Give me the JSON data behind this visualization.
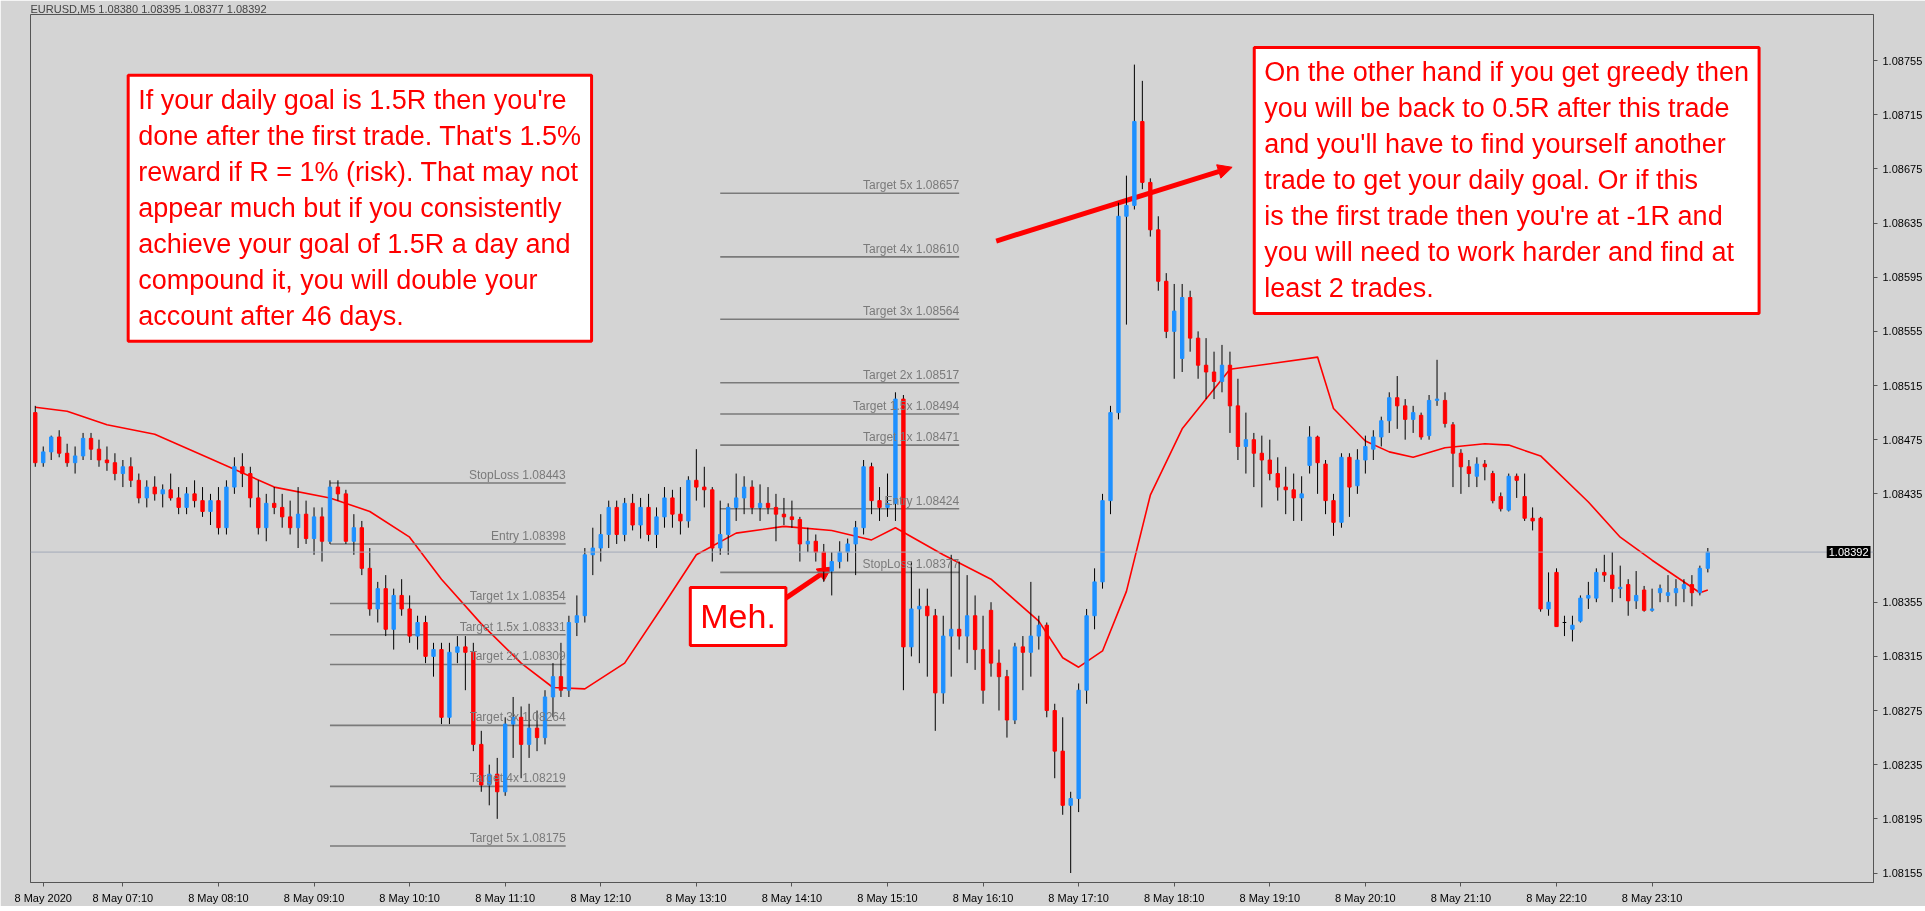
{
  "chart_data": {
    "type": "candlestick",
    "title": "EURUSD,M5  1.08380 1.08395 1.08377 1.08392",
    "x": [
      "2020-05-08T06:15",
      "2020-05-08T06:20",
      "2020-05-08T06:25",
      "2020-05-08T06:30",
      "2020-05-08T06:35",
      "2020-05-08T06:40",
      "2020-05-08T06:45",
      "2020-05-08T06:50",
      "2020-05-08T06:55",
      "2020-05-08T07:00",
      "2020-05-08T07:05",
      "2020-05-08T07:10",
      "2020-05-08T07:15",
      "2020-05-08T07:20",
      "2020-05-08T07:25",
      "2020-05-08T07:30",
      "2020-05-08T07:35",
      "2020-05-08T07:40",
      "2020-05-08T07:45",
      "2020-05-08T07:50",
      "2020-05-08T07:55",
      "2020-05-08T08:00",
      "2020-05-08T08:05",
      "2020-05-08T08:10",
      "2020-05-08T08:15",
      "2020-05-08T08:20",
      "2020-05-08T08:25",
      "2020-05-08T08:30",
      "2020-05-08T08:35",
      "2020-05-08T08:40",
      "2020-05-08T08:45",
      "2020-05-08T08:50",
      "2020-05-08T08:55",
      "2020-05-08T09:00",
      "2020-05-08T09:05",
      "2020-05-08T09:10",
      "2020-05-08T09:15",
      "2020-05-08T09:20",
      "2020-05-08T09:25",
      "2020-05-08T09:30",
      "2020-05-08T09:35",
      "2020-05-08T09:40",
      "2020-05-08T09:45",
      "2020-05-08T09:50",
      "2020-05-08T09:55",
      "2020-05-08T10:00",
      "2020-05-08T10:05",
      "2020-05-08T10:10",
      "2020-05-08T10:15",
      "2020-05-08T10:20",
      "2020-05-08T10:25",
      "2020-05-08T10:30",
      "2020-05-08T10:35",
      "2020-05-08T10:40",
      "2020-05-08T10:45",
      "2020-05-08T10:50",
      "2020-05-08T10:55",
      "2020-05-08T11:00",
      "2020-05-08T11:05",
      "2020-05-08T11:10",
      "2020-05-08T11:15",
      "2020-05-08T11:20",
      "2020-05-08T11:25",
      "2020-05-08T11:30",
      "2020-05-08T11:35",
      "2020-05-08T11:40",
      "2020-05-08T11:45",
      "2020-05-08T11:50",
      "2020-05-08T11:55",
      "2020-05-08T12:00",
      "2020-05-08T12:05",
      "2020-05-08T12:10",
      "2020-05-08T12:15",
      "2020-05-08T12:20",
      "2020-05-08T12:25",
      "2020-05-08T12:30",
      "2020-05-08T12:35",
      "2020-05-08T12:40",
      "2020-05-08T12:45",
      "2020-05-08T12:50",
      "2020-05-08T12:55",
      "2020-05-08T13:00",
      "2020-05-08T13:05",
      "2020-05-08T13:10",
      "2020-05-08T13:15",
      "2020-05-08T13:20",
      "2020-05-08T13:25",
      "2020-05-08T13:30",
      "2020-05-08T13:35",
      "2020-05-08T13:40",
      "2020-05-08T13:45",
      "2020-05-08T13:50",
      "2020-05-08T13:55",
      "2020-05-08T14:00",
      "2020-05-08T14:05",
      "2020-05-08T14:10",
      "2020-05-08T14:15",
      "2020-05-08T14:20",
      "2020-05-08T14:25",
      "2020-05-08T14:30",
      "2020-05-08T14:35",
      "2020-05-08T14:40",
      "2020-05-08T14:45",
      "2020-05-08T14:50",
      "2020-05-08T14:55",
      "2020-05-08T15:00",
      "2020-05-08T15:05",
      "2020-05-08T15:10",
      "2020-05-08T15:15",
      "2020-05-08T15:20",
      "2020-05-08T15:25",
      "2020-05-08T15:30",
      "2020-05-08T15:35",
      "2020-05-08T15:40",
      "2020-05-08T15:45",
      "2020-05-08T15:50",
      "2020-05-08T15:55",
      "2020-05-08T16:00",
      "2020-05-08T16:05",
      "2020-05-08T16:10",
      "2020-05-08T16:15",
      "2020-05-08T16:20",
      "2020-05-08T16:25",
      "2020-05-08T16:30",
      "2020-05-08T16:35",
      "2020-05-08T16:40",
      "2020-05-08T16:45",
      "2020-05-08T16:50",
      "2020-05-08T16:55",
      "2020-05-08T17:00",
      "2020-05-08T17:05",
      "2020-05-08T17:10",
      "2020-05-08T17:15",
      "2020-05-08T17:20",
      "2020-05-08T17:25",
      "2020-05-08T17:30",
      "2020-05-08T17:35",
      "2020-05-08T17:40",
      "2020-05-08T17:45",
      "2020-05-08T17:50",
      "2020-05-08T17:55",
      "2020-05-08T18:00",
      "2020-05-08T18:05",
      "2020-05-08T18:10",
      "2020-05-08T18:15",
      "2020-05-08T18:20",
      "2020-05-08T18:25",
      "2020-05-08T18:30",
      "2020-05-08T18:35",
      "2020-05-08T18:40",
      "2020-05-08T18:45",
      "2020-05-08T18:50",
      "2020-05-08T18:55",
      "2020-05-08T19:00",
      "2020-05-08T19:05",
      "2020-05-08T19:10",
      "2020-05-08T19:15",
      "2020-05-08T19:20",
      "2020-05-08T19:25",
      "2020-05-08T19:30",
      "2020-05-08T19:35",
      "2020-05-08T19:40",
      "2020-05-08T19:45",
      "2020-05-08T19:50",
      "2020-05-08T19:55",
      "2020-05-08T20:00",
      "2020-05-08T20:05",
      "2020-05-08T20:10",
      "2020-05-08T20:15",
      "2020-05-08T20:20",
      "2020-05-08T20:25",
      "2020-05-08T20:30",
      "2020-05-08T20:35",
      "2020-05-08T20:40",
      "2020-05-08T20:45",
      "2020-05-08T20:50",
      "2020-05-08T20:55",
      "2020-05-08T21:00",
      "2020-05-08T21:05",
      "2020-05-08T21:10",
      "2020-05-08T21:15",
      "2020-05-08T21:20",
      "2020-05-08T21:25",
      "2020-05-08T21:30",
      "2020-05-08T21:35",
      "2020-05-08T21:40",
      "2020-05-08T21:45",
      "2020-05-08T21:50",
      "2020-05-08T21:55",
      "2020-05-08T22:00",
      "2020-05-08T22:05",
      "2020-05-08T22:10",
      "2020-05-08T22:15",
      "2020-05-08T22:20",
      "2020-05-08T22:25",
      "2020-05-08T22:30",
      "2020-05-08T22:35",
      "2020-05-08T22:40",
      "2020-05-08T22:45",
      "2020-05-08T22:50",
      "2020-05-08T22:55",
      "2020-05-08T23:00",
      "2020-05-08T23:05",
      "2020-05-08T23:10",
      "2020-05-08T23:15",
      "2020-05-08T23:20",
      "2020-05-08T23:25",
      "2020-05-08T23:30",
      "2020-05-08T23:35",
      "2020-05-08T23:40",
      "2020-05-08T23:45"
    ],
    "ohlc": [
      [
        1.08495,
        1.085,
        1.08455,
        1.08458
      ],
      [
        1.08458,
        1.0847,
        1.08455,
        1.08466
      ],
      [
        1.08466,
        1.08478,
        1.0846,
        1.08477
      ],
      [
        1.08477,
        1.08482,
        1.08462,
        1.08465
      ],
      [
        1.08465,
        1.08472,
        1.08455,
        1.08458
      ],
      [
        1.08458,
        1.0847,
        1.0845,
        1.08463
      ],
      [
        1.08463,
        1.0848,
        1.0846,
        1.08476
      ],
      [
        1.08476,
        1.0848,
        1.0846,
        1.08468
      ],
      [
        1.08468,
        1.08475,
        1.08455,
        1.0846
      ],
      [
        1.0846,
        1.0847,
        1.08452,
        1.08458
      ],
      [
        1.08458,
        1.08465,
        1.08445,
        1.0845
      ],
      [
        1.0845,
        1.0846,
        1.0844,
        1.08455
      ],
      [
        1.08455,
        1.08462,
        1.0844,
        1.08445
      ],
      [
        1.08445,
        1.0845,
        1.08428,
        1.08432
      ],
      [
        1.08432,
        1.08445,
        1.08425,
        1.0844
      ],
      [
        1.0844,
        1.08448,
        1.0843,
        1.08435
      ],
      [
        1.08435,
        1.08442,
        1.08425,
        1.08438
      ],
      [
        1.08438,
        1.0845,
        1.0843,
        1.08432
      ],
      [
        1.08432,
        1.0844,
        1.0842,
        1.08425
      ],
      [
        1.08425,
        1.0844,
        1.0842,
        1.08435
      ],
      [
        1.08435,
        1.08445,
        1.08425,
        1.0843
      ],
      [
        1.0843,
        1.0844,
        1.08418,
        1.08422
      ],
      [
        1.08422,
        1.08435,
        1.08412,
        1.0843
      ],
      [
        1.0843,
        1.0844,
        1.08405,
        1.0841
      ],
      [
        1.0841,
        1.08445,
        1.08405,
        1.0844
      ],
      [
        1.0844,
        1.08462,
        1.08435,
        1.08455
      ],
      [
        1.08455,
        1.08465,
        1.0844,
        1.0845
      ],
      [
        1.0845,
        1.08455,
        1.08425,
        1.08432
      ],
      [
        1.08432,
        1.08445,
        1.08405,
        1.0841
      ],
      [
        1.0841,
        1.08435,
        1.084,
        1.08428
      ],
      [
        1.08428,
        1.0844,
        1.0842,
        1.08425
      ],
      [
        1.08425,
        1.08435,
        1.0841,
        1.08418
      ],
      [
        1.08418,
        1.0843,
        1.08405,
        1.0841
      ],
      [
        1.0841,
        1.0844,
        1.08395,
        1.0842
      ],
      [
        1.0842,
        1.0843,
        1.08398,
        1.08402
      ],
      [
        1.08402,
        1.08425,
        1.0839,
        1.08418
      ],
      [
        1.08418,
        1.08425,
        1.08385,
        1.084
      ],
      [
        1.084,
        1.08445,
        1.08398,
        1.0844
      ],
      [
        1.0844,
        1.08445,
        1.0843,
        1.08435
      ],
      [
        1.08435,
        1.08438,
        1.08398,
        1.084
      ],
      [
        1.084,
        1.0842,
        1.0839,
        1.0841
      ],
      [
        1.0841,
        1.08415,
        1.08375,
        1.0838
      ],
      [
        1.0838,
        1.08395,
        1.08345,
        1.0835
      ],
      [
        1.0835,
        1.0837,
        1.0834,
        1.08365
      ],
      [
        1.08365,
        1.08375,
        1.0833,
        1.08335
      ],
      [
        1.08335,
        1.08365,
        1.0832,
        1.0836
      ],
      [
        1.0836,
        1.08372,
        1.08345,
        1.0835
      ],
      [
        1.0835,
        1.0836,
        1.08325,
        1.0833
      ],
      [
        1.0833,
        1.08345,
        1.0832,
        1.0834
      ],
      [
        1.0834,
        1.08345,
        1.0831,
        1.08315
      ],
      [
        1.08315,
        1.08325,
        1.083,
        1.0832
      ],
      [
        1.0832,
        1.08325,
        1.08265,
        1.0827
      ],
      [
        1.0827,
        1.08325,
        1.08265,
        1.08318
      ],
      [
        1.08318,
        1.0833,
        1.0831,
        1.08322
      ],
      [
        1.08322,
        1.0833,
        1.0829,
        1.08318
      ],
      [
        1.08318,
        1.08325,
        1.08245,
        1.0825
      ],
      [
        1.0825,
        1.0826,
        1.08215,
        1.0822
      ],
      [
        1.0822,
        1.08235,
        1.08205,
        1.08228
      ],
      [
        1.08228,
        1.0824,
        1.08195,
        1.08215
      ],
      [
        1.08215,
        1.0827,
        1.08212,
        1.08265
      ],
      [
        1.08265,
        1.08285,
        1.0824,
        1.0827
      ],
      [
        1.0827,
        1.08278,
        1.08225,
        1.0825
      ],
      [
        1.0825,
        1.0828,
        1.0824,
        1.08262
      ],
      [
        1.08262,
        1.08275,
        1.08245,
        1.08255
      ],
      [
        1.08255,
        1.0829,
        1.0825,
        1.08285
      ],
      [
        1.08285,
        1.0831,
        1.0827,
        1.083
      ],
      [
        1.083,
        1.08325,
        1.08285,
        1.0829
      ],
      [
        1.0829,
        1.08345,
        1.08285,
        1.0834
      ],
      [
        1.0834,
        1.0836,
        1.0833,
        1.08345
      ],
      [
        1.08345,
        1.08395,
        1.0834,
        1.0839
      ],
      [
        1.0839,
        1.0841,
        1.08375,
        1.08395
      ],
      [
        1.08395,
        1.0842,
        1.08385,
        1.08405
      ],
      [
        1.08405,
        1.0843,
        1.08395,
        1.08425
      ],
      [
        1.08425,
        1.0843,
        1.08398,
        1.08405
      ],
      [
        1.08405,
        1.08432,
        1.084,
        1.08428
      ],
      [
        1.08428,
        1.08435,
        1.08408,
        1.08412
      ],
      [
        1.08412,
        1.08432,
        1.08402,
        1.08425
      ],
      [
        1.08425,
        1.08435,
        1.084,
        1.08405
      ],
      [
        1.08405,
        1.08425,
        1.08395,
        1.08418
      ],
      [
        1.08418,
        1.0844,
        1.0841,
        1.08432
      ],
      [
        1.08432,
        1.08438,
        1.0841,
        1.0842
      ],
      [
        1.0842,
        1.0844,
        1.08405,
        1.08415
      ],
      [
        1.08415,
        1.08448,
        1.0841,
        1.08445
      ],
      [
        1.08445,
        1.08468,
        1.0843,
        1.0844
      ],
      [
        1.0844,
        1.08455,
        1.08425,
        1.08438
      ],
      [
        1.08438,
        1.0844,
        1.08385,
        1.08395
      ],
      [
        1.08395,
        1.0843,
        1.0839,
        1.08405
      ],
      [
        1.08405,
        1.08428,
        1.0839,
        1.08425
      ],
      [
        1.08425,
        1.0845,
        1.08415,
        1.08432
      ],
      [
        1.08432,
        1.08448,
        1.0842,
        1.0844
      ],
      [
        1.0844,
        1.08445,
        1.0842,
        1.08425
      ],
      [
        1.08425,
        1.08442,
        1.08415,
        1.08428
      ],
      [
        1.08428,
        1.0844,
        1.0842,
        1.08425
      ],
      [
        1.08425,
        1.08435,
        1.084,
        1.0842
      ],
      [
        1.0842,
        1.08432,
        1.08412,
        1.08418
      ],
      [
        1.08418,
        1.0843,
        1.0841,
        1.08416
      ],
      [
        1.08416,
        1.08418,
        1.08385,
        1.08398
      ],
      [
        1.08398,
        1.0841,
        1.08392,
        1.084
      ],
      [
        1.084,
        1.08405,
        1.08385,
        1.08392
      ],
      [
        1.08392,
        1.08398,
        1.0837,
        1.08378
      ],
      [
        1.08378,
        1.08392,
        1.0836,
        1.08385
      ],
      [
        1.08385,
        1.084,
        1.0838,
        1.08392
      ],
      [
        1.08392,
        1.08402,
        1.08385,
        1.08398
      ],
      [
        1.08398,
        1.08415,
        1.08375,
        1.0841
      ],
      [
        1.0841,
        1.0846,
        1.08405,
        1.08455
      ],
      [
        1.08455,
        1.08458,
        1.0842,
        1.0843
      ],
      [
        1.0843,
        1.0844,
        1.08415,
        1.08425
      ],
      [
        1.08425,
        1.0845,
        1.08418,
        1.08428
      ],
      [
        1.08428,
        1.0851,
        1.08415,
        1.08505
      ],
      [
        1.08505,
        1.08508,
        1.0829,
        1.08322
      ],
      [
        1.08322,
        1.08385,
        1.08315,
        1.0835
      ],
      [
        1.0835,
        1.08365,
        1.0831,
        1.08352
      ],
      [
        1.08352,
        1.08365,
        1.083,
        1.08345
      ],
      [
        1.08345,
        1.0835,
        1.0826,
        1.08288
      ],
      [
        1.08288,
        1.08345,
        1.0828,
        1.0833
      ],
      [
        1.0833,
        1.0839,
        1.083,
        1.08335
      ],
      [
        1.08335,
        1.08385,
        1.0832,
        1.0833
      ],
      [
        1.0833,
        1.08375,
        1.0831,
        1.08345
      ],
      [
        1.08345,
        1.0836,
        1.08305,
        1.0832
      ],
      [
        1.0832,
        1.08345,
        1.0828,
        1.0829
      ],
      [
        1.08349,
        1.08355,
        1.083,
        1.0831
      ],
      [
        1.0831,
        1.0832,
        1.08275,
        1.083
      ],
      [
        1.083,
        1.08305,
        1.08255,
        1.08268
      ],
      [
        1.08268,
        1.08325,
        1.08265,
        1.08322
      ],
      [
        1.08322,
        1.0833,
        1.0829,
        1.08318
      ],
      [
        1.08318,
        1.0837,
        1.083,
        1.0833
      ],
      [
        1.0833,
        1.08345,
        1.0832,
        1.08338
      ],
      [
        1.08338,
        1.0834,
        1.0827,
        1.08275
      ],
      [
        1.08275,
        1.0828,
        1.08225,
        1.08245
      ],
      [
        1.08245,
        1.0827,
        1.08198,
        1.08205
      ],
      [
        1.08205,
        1.08215,
        1.08155,
        1.0821
      ],
      [
        1.0821,
        1.08295,
        1.082,
        1.0829
      ],
      [
        1.0829,
        1.0835,
        1.0828,
        1.08345
      ],
      [
        1.08345,
        1.0838,
        1.08335,
        1.0837
      ],
      [
        1.0837,
        1.08435,
        1.08365,
        1.0843
      ],
      [
        1.0843,
        1.085,
        1.0842,
        1.08495
      ],
      [
        1.08495,
        1.0865,
        1.0849,
        1.0864
      ],
      [
        1.0864,
        1.0867,
        1.0856,
        1.08648
      ],
      [
        1.08648,
        1.08752,
        1.08645,
        1.0871
      ],
      [
        1.0871,
        1.0874,
        1.0866,
        1.08665
      ],
      [
        1.08665,
        1.08668,
        1.08625,
        1.0863
      ],
      [
        1.0863,
        1.0864,
        1.08585,
        1.08592
      ],
      [
        1.08592,
        1.08598,
        1.0855,
        1.08555
      ],
      [
        1.08555,
        1.0859,
        1.0852,
        1.0857
      ],
      [
        1.08535,
        1.0859,
        1.08525,
        1.0858
      ],
      [
        1.0858,
        1.08585,
        1.0854,
        1.0855
      ],
      [
        1.0855,
        1.08555,
        1.0852,
        1.0853
      ],
      [
        1.0853,
        1.0855,
        1.08505,
        1.08525
      ],
      [
        1.08525,
        1.0854,
        1.08505,
        1.08518
      ],
      [
        1.08518,
        1.08545,
        1.0851,
        1.0853
      ],
      [
        1.0853,
        1.0854,
        1.0848,
        1.085
      ],
      [
        1.085,
        1.0852,
        1.0846,
        1.0847
      ],
      [
        1.0847,
        1.08495,
        1.0845,
        1.08475
      ],
      [
        1.08475,
        1.0848,
        1.0844,
        1.08465
      ],
      [
        1.08465,
        1.08478,
        1.08425,
        1.0846
      ],
      [
        1.0846,
        1.08475,
        1.08445,
        1.0845
      ],
      [
        1.0845,
        1.08462,
        1.0843,
        1.0844
      ],
      [
        1.0844,
        1.08455,
        1.0842,
        1.08438
      ],
      [
        1.08438,
        1.0845,
        1.08415,
        1.08432
      ],
      [
        1.08432,
        1.08448,
        1.08415,
        1.08435
      ],
      [
        1.08456,
        1.08485,
        1.0845,
        1.08477
      ],
      [
        1.08477,
        1.08478,
        1.08435,
        1.08458
      ],
      [
        1.08457,
        1.0846,
        1.0842,
        1.0843
      ],
      [
        1.0843,
        1.08435,
        1.08404,
        1.08414
      ],
      [
        1.08414,
        1.08465,
        1.0841,
        1.08462
      ],
      [
        1.08462,
        1.08465,
        1.08418,
        1.0844
      ],
      [
        1.08441,
        1.08468,
        1.08435,
        1.0846
      ],
      [
        1.0846,
        1.08478,
        1.0845,
        1.0847
      ],
      [
        1.08468,
        1.08482,
        1.0846,
        1.08477
      ],
      [
        1.08477,
        1.08492,
        1.0847,
        1.08489
      ],
      [
        1.08489,
        1.0851,
        1.0848,
        1.08506
      ],
      [
        1.08506,
        1.08522,
        1.08483,
        1.085
      ],
      [
        1.085,
        1.08505,
        1.08475,
        1.0849
      ],
      [
        1.0849,
        1.085,
        1.0848,
        1.08495
      ],
      [
        1.08493,
        1.08495,
        1.08475,
        1.08477
      ],
      [
        1.08478,
        1.08508,
        1.08475,
        1.08504
      ],
      [
        1.08504,
        1.08534,
        1.085,
        1.08505
      ],
      [
        1.08504,
        1.0851,
        1.08484,
        1.08487
      ],
      [
        1.08486,
        1.08488,
        1.0844,
        1.08465
      ],
      [
        1.08465,
        1.08468,
        1.08435,
        1.08455
      ],
      [
        1.08455,
        1.0846,
        1.0844,
        1.0845
      ],
      [
        1.08448,
        1.08462,
        1.0844,
        1.08457
      ],
      [
        1.08457,
        1.0846,
        1.08445,
        1.08455
      ],
      [
        1.0845,
        1.08452,
        1.08428,
        1.0843
      ],
      [
        1.08433,
        1.08436,
        1.08422,
        1.08424
      ],
      [
        1.08423,
        1.0845,
        1.08422,
        1.08448
      ],
      [
        1.08448,
        1.0845,
        1.08432,
        1.08445
      ],
      [
        1.08433,
        1.0845,
        1.08415,
        1.08417
      ],
      [
        1.08417,
        1.08425,
        1.08408,
        1.08415
      ],
      [
        1.08417,
        1.08418,
        1.08348,
        1.0835
      ],
      [
        1.0835,
        1.08377,
        1.08345,
        1.08355
      ],
      [
        1.08377,
        1.0838,
        1.08337,
        1.08337
      ],
      [
        1.0834,
        1.08345,
        1.0833,
        1.0834
      ],
      [
        1.08335,
        1.08345,
        1.08326,
        1.08338
      ],
      [
        1.08341,
        1.0836,
        1.0834,
        1.08358
      ],
      [
        1.08358,
        1.0837,
        1.0835,
        1.0836
      ],
      [
        1.08358,
        1.0838,
        1.08355,
        1.08377
      ],
      [
        1.08377,
        1.0839,
        1.0837,
        1.08375
      ],
      [
        1.08375,
        1.08392,
        1.08355,
        1.08365
      ],
      [
        1.08365,
        1.08382,
        1.08358,
        1.08366
      ],
      [
        1.08368,
        1.08372,
        1.08345,
        1.08356
      ],
      [
        1.08356,
        1.08378,
        1.0835,
        1.0836
      ],
      [
        1.08364,
        1.08367,
        1.08348,
        1.08349
      ],
      [
        1.08349,
        1.08365,
        1.08348,
        1.0835
      ],
      [
        1.08362,
        1.08368,
        1.08355,
        1.08365
      ],
      [
        1.0836,
        1.08375,
        1.08355,
        1.08362
      ],
      [
        1.08362,
        1.08372,
        1.08352,
        1.08365
      ],
      [
        1.08365,
        1.08372,
        1.08355,
        1.08368
      ],
      [
        1.08368,
        1.08375,
        1.08352,
        1.08362
      ],
      [
        1.08362,
        1.08382,
        1.0836,
        1.0838
      ],
      [
        1.0838,
        1.08395,
        1.08377,
        1.08392
      ]
    ],
    "colors": [
      "#ff0000",
      "#1e90ff",
      "#1e90ff",
      "#ff0000",
      "#ff0000",
      "#1e90ff",
      "#1e90ff",
      "#ff0000",
      "#ff0000",
      "#ff0000",
      "#ff0000",
      "#1e90ff",
      "#ff0000",
      "#ff0000",
      "#1e90ff",
      "#ff0000",
      "#1e90ff",
      "#ff0000",
      "#ff0000",
      "#1e90ff",
      "#ff0000",
      "#ff0000",
      "#1e90ff",
      "#ff0000",
      "#1e90ff",
      "#1e90ff",
      "#ff0000",
      "#ff0000",
      "#ff0000",
      "#1e90ff",
      "#ff0000",
      "#ff0000",
      "#ff0000",
      "#1e90ff",
      "#ff0000",
      "#1e90ff",
      "#ff0000",
      "#1e90ff",
      "#ff0000",
      "#ff0000",
      "#1e90ff",
      "#ff0000",
      "#ff0000",
      "#1e90ff",
      "#ff0000",
      "#1e90ff",
      "#ff0000",
      "#ff0000",
      "#1e90ff",
      "#ff0000",
      "#1e90ff",
      "#ff0000",
      "#1e90ff",
      "#1e90ff",
      "#ff0000",
      "#ff0000",
      "#ff0000",
      "#1e90ff",
      "#ff0000",
      "#1e90ff",
      "#1e90ff",
      "#ff0000",
      "#1e90ff",
      "#ff0000",
      "#1e90ff",
      "#1e90ff",
      "#ff0000",
      "#1e90ff",
      "#1e90ff",
      "#1e90ff",
      "#1e90ff",
      "#1e90ff",
      "#1e90ff",
      "#ff0000",
      "#1e90ff",
      "#ff0000",
      "#1e90ff",
      "#ff0000",
      "#1e90ff",
      "#1e90ff",
      "#ff0000",
      "#ff0000",
      "#1e90ff",
      "#ff0000",
      "#ff0000",
      "#ff0000",
      "#1e90ff",
      "#1e90ff",
      "#1e90ff",
      "#1e90ff",
      "#ff0000",
      "#1e90ff",
      "#ff0000",
      "#ff0000",
      "#ff0000",
      "#ff0000",
      "#ff0000",
      "#1e90ff",
      "#ff0000",
      "#ff0000",
      "#1e90ff",
      "#1e90ff",
      "#1e90ff",
      "#1e90ff",
      "#1e90ff",
      "#ff0000",
      "#ff0000",
      "#1e90ff",
      "#1e90ff",
      "#ff0000",
      "#1e90ff",
      "#1e90ff",
      "#ff0000",
      "#ff0000",
      "#1e90ff",
      "#1e90ff",
      "#ff0000",
      "#1e90ff",
      "#ff0000",
      "#ff0000",
      "#ff0000",
      "#ff0000",
      "#ff0000",
      "#1e90ff",
      "#ff0000",
      "#1e90ff",
      "#1e90ff",
      "#ff0000",
      "#ff0000",
      "#ff0000",
      "#1e90ff",
      "#1e90ff",
      "#1e90ff",
      "#1e90ff",
      "#1e90ff",
      "#1e90ff",
      "#1e90ff",
      "#1e90ff",
      "#1e90ff",
      "#ff0000",
      "#ff0000",
      "#ff0000",
      "#ff0000",
      "#1e90ff",
      "#1e90ff",
      "#ff0000",
      "#ff0000",
      "#ff0000",
      "#ff0000",
      "#1e90ff",
      "#ff0000",
      "#ff0000",
      "#1e90ff",
      "#ff0000",
      "#ff0000",
      "#ff0000",
      "#ff0000",
      "#ff0000",
      "#ff0000",
      "#1e90ff",
      "#1e90ff",
      "#ff0000",
      "#ff0000",
      "#ff0000",
      "#1e90ff",
      "#ff0000",
      "#1e90ff",
      "#1e90ff",
      "#1e90ff",
      "#1e90ff",
      "#1e90ff",
      "#ff0000",
      "#ff0000",
      "#1e90ff",
      "#ff0000",
      "#1e90ff",
      "#1e90ff",
      "#ff0000",
      "#ff0000",
      "#ff0000",
      "#ff0000",
      "#1e90ff",
      "#ff0000",
      "#ff0000",
      "#ff0000",
      "#1e90ff",
      "#ff0000",
      "#ff0000",
      "#ff0000",
      "#ff0000",
      "#1e90ff",
      "#ff0000",
      "#000000",
      "#1e90ff",
      "#1e90ff",
      "#1e90ff",
      "#1e90ff",
      "#ff0000",
      "#ff0000",
      "#1e90ff",
      "#ff0000",
      "#1e90ff",
      "#ff0000",
      "#1e90ff",
      "#1e90ff",
      "#1e90ff",
      "#1e90ff",
      "#1e90ff",
      "#ff0000",
      "#1e90ff",
      "#1e90ff"
    ],
    "series": [
      {
        "type": "line",
        "color": "#ff0000",
        "x": [
          "2020-05-08T06:15",
          "2020-05-08T06:35",
          "2020-05-08T07:00",
          "2020-05-08T07:30",
          "2020-05-08T08:05",
          "2020-05-08T08:45",
          "2020-05-08T09:20",
          "2020-05-08T09:45",
          "2020-05-08T10:10",
          "2020-05-08T10:30",
          "2020-05-08T10:55",
          "2020-05-08T11:20",
          "2020-05-08T11:40",
          "2020-05-08T12:00",
          "2020-05-08T12:25",
          "2020-05-08T12:50",
          "2020-05-08T13:10",
          "2020-05-08T13:35",
          "2020-05-08T14:05",
          "2020-05-08T14:35",
          "2020-05-08T15:00",
          "2020-05-08T15:15",
          "2020-05-08T15:45",
          "2020-05-08T16:15",
          "2020-05-08T16:45",
          "2020-05-08T17:00",
          "2020-05-08T17:10",
          "2020-05-08T17:25",
          "2020-05-08T17:40",
          "2020-05-08T17:55",
          "2020-05-08T18:15",
          "2020-05-08T18:45",
          "2020-05-08T19:40",
          "2020-05-08T19:50",
          "2020-05-08T20:10",
          "2020-05-08T20:25",
          "2020-05-08T20:40",
          "2020-05-08T21:00",
          "2020-05-08T21:25",
          "2020-05-08T21:40",
          "2020-05-08T22:00",
          "2020-05-08T22:30",
          "2020-05-08T22:50",
          "2020-05-08T23:10",
          "2020-05-08T23:25",
          "2020-05-08T23:40",
          "2020-05-08T23:45"
        ],
        "values": [
          1.08499,
          1.08496,
          1.08486,
          1.08479,
          1.08461,
          1.0844,
          1.08432,
          1.08422,
          1.08403,
          1.08372,
          1.08339,
          1.0831,
          1.08292,
          1.08291,
          1.0831,
          1.08354,
          1.0839,
          1.08406,
          1.08411,
          1.08408,
          1.08401,
          1.0841,
          1.0839,
          1.08372,
          1.08341,
          1.08314,
          1.08307,
          1.08319,
          1.08363,
          1.08434,
          1.08483,
          1.08527,
          1.08536,
          1.08498,
          1.08474,
          1.08466,
          1.08462,
          1.08469,
          1.08472,
          1.08471,
          1.08463,
          1.08429,
          1.08403,
          1.08386,
          1.08374,
          1.08362,
          1.08364
        ]
      },
      {
        "type": "line",
        "name": "StopLoss 1.08443",
        "color": "#7a7a7a",
        "x": [
          "2020-05-08T09:20",
          "2020-05-08T11:48"
        ],
        "values": [
          1.08443,
          1.08443
        ]
      },
      {
        "type": "line",
        "name": "Entry 1.08398",
        "color": "#7a7a7a",
        "x": [
          "2020-05-08T09:20",
          "2020-05-08T11:48"
        ],
        "values": [
          1.08398,
          1.08398
        ]
      },
      {
        "type": "line",
        "name": "Target 1x 1.08354",
        "color": "#7a7a7a",
        "x": [
          "2020-05-08T09:20",
          "2020-05-08T11:48"
        ],
        "values": [
          1.08354,
          1.08354
        ]
      },
      {
        "type": "line",
        "name": "Target 1.5x 1.08331",
        "color": "#7a7a7a",
        "x": [
          "2020-05-08T09:20",
          "2020-05-08T11:48"
        ],
        "values": [
          1.08331,
          1.08331
        ]
      },
      {
        "type": "line",
        "name": "Target 2x 1.08309",
        "color": "#7a7a7a",
        "x": [
          "2020-05-08T09:20",
          "2020-05-08T11:48"
        ],
        "values": [
          1.08309,
          1.08309
        ]
      },
      {
        "type": "line",
        "name": "Target 3x 1.08264",
        "color": "#7a7a7a",
        "x": [
          "2020-05-08T09:20",
          "2020-05-08T11:48"
        ],
        "values": [
          1.08264,
          1.08264
        ]
      },
      {
        "type": "line",
        "name": "Target 4x 1.08219",
        "color": "#7a7a7a",
        "x": [
          "2020-05-08T09:20",
          "2020-05-08T11:48"
        ],
        "values": [
          1.08219,
          1.08219
        ]
      },
      {
        "type": "line",
        "name": "Target 5x 1.08175",
        "color": "#7a7a7a",
        "x": [
          "2020-05-08T09:20",
          "2020-05-08T11:48"
        ],
        "values": [
          1.08175,
          1.08175
        ]
      },
      {
        "type": "line",
        "name": "Target 5x 1.08657",
        "color": "#7a7a7a",
        "x": [
          "2020-05-08T13:25",
          "2020-05-08T15:55"
        ],
        "values": [
          1.08657,
          1.08657
        ]
      },
      {
        "type": "line",
        "name": "Target 4x 1.08610",
        "color": "#7a7a7a",
        "x": [
          "2020-05-08T13:25",
          "2020-05-08T15:55"
        ],
        "values": [
          1.0861,
          1.0861
        ]
      },
      {
        "type": "line",
        "name": "Target 3x 1.08564",
        "color": "#7a7a7a",
        "x": [
          "2020-05-08T13:25",
          "2020-05-08T15:55"
        ],
        "values": [
          1.08564,
          1.08564
        ]
      },
      {
        "type": "line",
        "name": "Target 2x 1.08517",
        "color": "#7a7a7a",
        "x": [
          "2020-05-08T13:25",
          "2020-05-08T15:55"
        ],
        "values": [
          1.08517,
          1.08517
        ]
      },
      {
        "type": "line",
        "name": "Target 1.5x 1.08494",
        "color": "#7a7a7a",
        "x": [
          "2020-05-08T13:25",
          "2020-05-08T15:55"
        ],
        "values": [
          1.08494,
          1.08494
        ]
      },
      {
        "type": "line",
        "name": "Target 1x 1.08471",
        "color": "#7a7a7a",
        "x": [
          "2020-05-08T13:25",
          "2020-05-08T15:55"
        ],
        "values": [
          1.08471,
          1.08471
        ]
      },
      {
        "type": "line",
        "name": "Entry 1.08424",
        "color": "#7a7a7a",
        "x": [
          "2020-05-08T13:25",
          "2020-05-08T15:55"
        ],
        "values": [
          1.08424,
          1.08424
        ]
      },
      {
        "type": "line",
        "name": "StopLoss 1.08377",
        "color": "#7a7a7a",
        "x": [
          "2020-05-08T13:25",
          "2020-05-08T15:55"
        ],
        "values": [
          1.08377,
          1.08377
        ]
      }
    ],
    "ref_lines": [
      {
        "axis": "y",
        "value": 1.08392,
        "label": "1.08392",
        "color": "#a3aab8"
      }
    ],
    "annotations": [
      "If your daily goal is 1.5R then you're done after the first trade. That's 1.5% reward if R = 1% (risk). That may not appear much but if you consistently achieve your goal of 1.5R a day and compound it, you will double your account after 46 days.",
      "On the other hand if you get greedy then you will be back to 0.5R after this trade and you'll have to find yourself another trade to get your daily goal. Or if this is the first trade then you're at -1R and you will need to work harder and find at least 2 trades.",
      {
        "text": "Meh.",
        "x": "2020-05-08T14:35",
        "y": 1.08381
      }
    ],
    "xlim": [
      "2020-05-08T06:12",
      "2020-05-09T01:29"
    ],
    "xticks": [
      {
        "value": "2020-05-08T06:20",
        "label": "8 May 2020"
      },
      {
        "value": "2020-05-08T07:10",
        "label": "8 May 07:10"
      },
      {
        "value": "2020-05-08T08:10",
        "label": "8 May 08:10"
      },
      {
        "value": "2020-05-08T09:10",
        "label": "8 May 09:10"
      },
      {
        "value": "2020-05-08T10:10",
        "label": "8 May 10:10"
      },
      {
        "value": "2020-05-08T11:10",
        "label": "8 May 11:10"
      },
      {
        "value": "2020-05-08T12:10",
        "label": "8 May 12:10"
      },
      {
        "value": "2020-05-08T13:10",
        "label": "8 May 13:10"
      },
      {
        "value": "2020-05-08T14:10",
        "label": "8 May 14:10"
      },
      {
        "value": "2020-05-08T15:10",
        "label": "8 May 15:10"
      },
      {
        "value": "2020-05-08T16:10",
        "label": "8 May 16:10"
      },
      {
        "value": "2020-05-08T17:10",
        "label": "8 May 17:10"
      },
      {
        "value": "2020-05-08T18:10",
        "label": "8 May 18:10"
      },
      {
        "value": "2020-05-08T19:10",
        "label": "8 May 19:10"
      },
      {
        "value": "2020-05-08T20:10",
        "label": "8 May 20:10"
      },
      {
        "value": "2020-05-08T21:10",
        "label": "8 May 21:10"
      },
      {
        "value": "2020-05-08T22:10",
        "label": "8 May 22:10"
      },
      {
        "value": "2020-05-08T23:10",
        "label": "8 May 23:10"
      }
    ],
    "ylim": [
      1.08148,
      1.08789
    ],
    "yticks": [
      1.08155,
      1.08195,
      1.08235,
      1.08275,
      1.08315,
      1.08355,
      1.08435,
      1.08475,
      1.08515,
      1.08555,
      1.08595,
      1.08635,
      1.08675,
      1.08715,
      1.08755
    ],
    "grid": false
  }
}
